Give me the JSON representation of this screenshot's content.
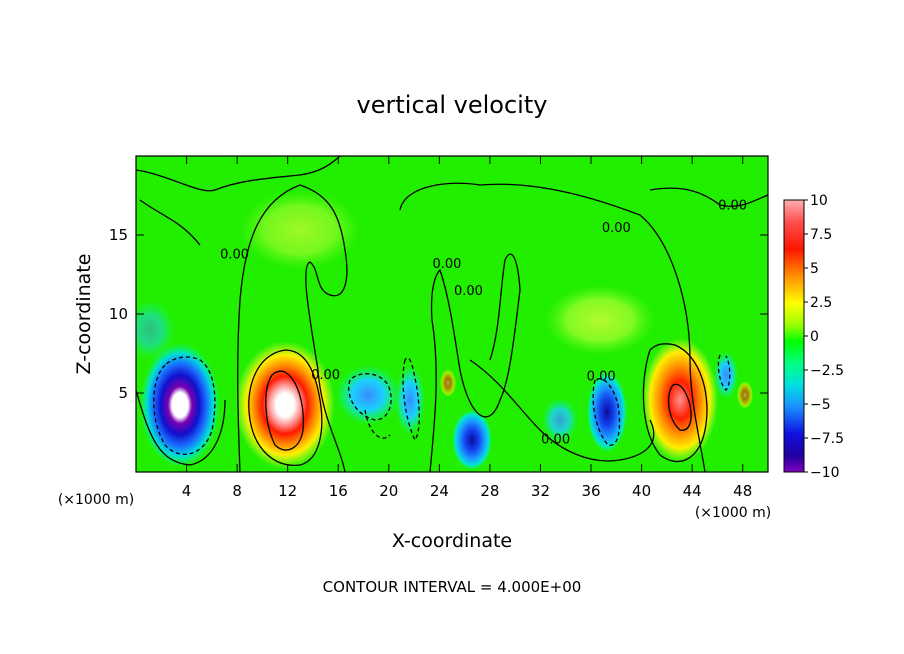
{
  "chart_data": {
    "type": "heatmap",
    "title": "vertical velocity",
    "xlabel": "X-coordinate",
    "ylabel": "Z-coordinate",
    "x_unit_label": "(×1000 m)",
    "z_unit_label": "(×1000 m)",
    "footer": "CONTOUR INTERVAL = 4.000E+00",
    "xlim": [
      0,
      50
    ],
    "ylim": [
      0,
      20
    ],
    "x_ticks": [
      "4",
      "8",
      "12",
      "16",
      "20",
      "24",
      "28",
      "32",
      "36",
      "40",
      "44",
      "48"
    ],
    "x_tick_values": [
      4,
      8,
      12,
      16,
      20,
      24,
      28,
      32,
      36,
      40,
      44,
      48
    ],
    "y_ticks": [
      "5",
      "10",
      "15"
    ],
    "y_tick_values": [
      5,
      10,
      15
    ],
    "colorbar": {
      "min": -10,
      "max": 10,
      "labels": [
        "10",
        "7.5",
        "5",
        "2.5",
        "0",
        "−2.5",
        "−5",
        "−7.5",
        "−10"
      ],
      "label_values": [
        10,
        7.5,
        5,
        2.5,
        0,
        -2.5,
        -5,
        -7.5,
        -10
      ]
    },
    "contour_labels": [
      {
        "text": "0.00",
        "x": 7.8,
        "z": 13.5
      },
      {
        "text": "0.00",
        "x": 24.6,
        "z": 12.9
      },
      {
        "text": "0.00",
        "x": 26.3,
        "z": 11.2
      },
      {
        "text": "0.00",
        "x": 38.0,
        "z": 15.2
      },
      {
        "text": "0.00",
        "x": 47.2,
        "z": 16.6
      },
      {
        "text": "0.00",
        "x": 15.0,
        "z": 5.9
      },
      {
        "text": "0.00",
        "x": 36.8,
        "z": 5.8
      },
      {
        "text": "0.00",
        "x": 33.2,
        "z": 1.8
      }
    ],
    "features": [
      {
        "name": "updraft",
        "x": 11.8,
        "z": 4.2,
        "peak": 10.5
      },
      {
        "name": "downdraft",
        "x": 3.6,
        "z": 4.6,
        "peak": -10.5
      },
      {
        "name": "updraft",
        "x": 43.0,
        "z": 4.5,
        "peak": 8.5
      },
      {
        "name": "downdraft",
        "x": 37.5,
        "z": 3.8,
        "peak": -6.5
      },
      {
        "name": "downdraft",
        "x": 26.5,
        "z": 2.0,
        "peak": -7.0
      },
      {
        "name": "downdraft",
        "x": 18.5,
        "z": 5.0,
        "peak": -4.0
      },
      {
        "name": "downdraft",
        "x": 21.5,
        "z": 4.5,
        "peak": -3.0
      },
      {
        "name": "downdraft",
        "x": 46.5,
        "z": 6.0,
        "peak": -3.5
      }
    ]
  }
}
